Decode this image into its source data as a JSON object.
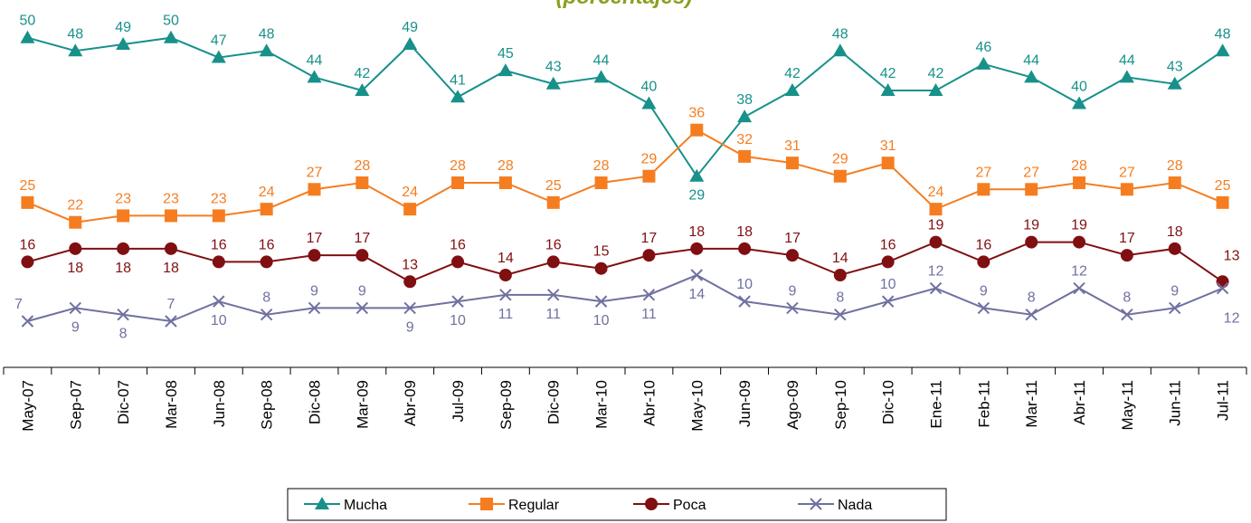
{
  "chart_data": {
    "type": "line",
    "subtitle": "(porcentajes)",
    "categories": [
      "May-07",
      "Sep-07",
      "Dic-07",
      "Mar-08",
      "Jun-08",
      "Sep-08",
      "Dic-08",
      "Mar-09",
      "Abr-09",
      "Jul-09",
      "Sep-09",
      "Dic-09",
      "Mar-10",
      "Abr-10",
      "May-10",
      "Jun-09",
      "Ago-09",
      "Sep-10",
      "Dic-10",
      "Ene-11",
      "Feb-11",
      "Mar-11",
      "Abr-11",
      "May-11",
      "Jun-11",
      "Jul-11"
    ],
    "series": [
      {
        "name": "Mucha",
        "color": "#17918a",
        "marker": "triangle",
        "values": [
          50,
          48,
          49,
          50,
          47,
          48,
          44,
          42,
          49,
          41,
          45,
          43,
          44,
          40,
          29,
          38,
          42,
          48,
          42,
          42,
          46,
          44,
          40,
          44,
          43,
          48
        ]
      },
      {
        "name": "Regular",
        "color": "#f57d20",
        "marker": "square",
        "values": [
          25,
          22,
          23,
          23,
          23,
          24,
          27,
          28,
          24,
          28,
          28,
          25,
          28,
          29,
          36,
          32,
          31,
          29,
          31,
          24,
          27,
          27,
          28,
          27,
          28,
          25
        ]
      },
      {
        "name": "Poca",
        "color": "#800f12",
        "marker": "circle",
        "values": [
          16,
          18,
          18,
          18,
          16,
          16,
          17,
          17,
          13,
          16,
          14,
          16,
          15,
          17,
          18,
          18,
          17,
          14,
          16,
          19,
          16,
          19,
          19,
          17,
          18,
          13
        ]
      },
      {
        "name": "Nada",
        "color": "#6f71a0",
        "marker": "x",
        "values": [
          7,
          9,
          8,
          7,
          10,
          8,
          9,
          9,
          9,
          10,
          11,
          11,
          10,
          11,
          14,
          10,
          9,
          8,
          10,
          12,
          9,
          8,
          12,
          8,
          9,
          12
        ]
      }
    ],
    "ylim": [
      0,
      56
    ],
    "legend": "bottom"
  }
}
